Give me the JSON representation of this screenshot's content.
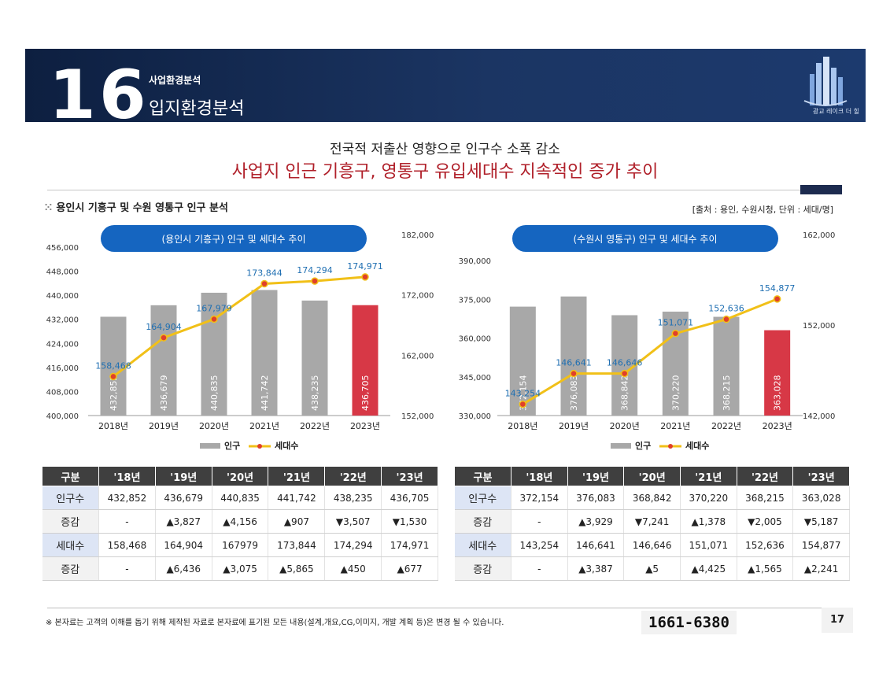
{
  "header": {
    "number": "16",
    "subtitle": "사업환경분석",
    "title": "입지환경분석",
    "logo_text": "광교 레이크 더 힐"
  },
  "headline": {
    "line1": "전국적 저출산 영향으로 인구수 소폭 감소",
    "line2": "사업지 인근 기흥구, 영통구 유입세대수 지속적인 증가 추이"
  },
  "section": {
    "title": "용인시 기흥구 및 수원 영통구 인구 분석",
    "source": "[출처 : 용인, 수원시청, 단위 : 세대/명]"
  },
  "colors": {
    "bar": "#a8a8a8",
    "bar_highlight": "#d73846",
    "line": "#f1c018",
    "dot": "#e0402a",
    "pill": "#1565c0",
    "value_label": "#1f6fb2"
  },
  "chart_data": [
    {
      "type": "bar",
      "title": "(용인시 기흥구) 인구 및 세대수 추이",
      "categories": [
        "2018년",
        "2019년",
        "2020년",
        "2021년",
        "2022년",
        "2023년"
      ],
      "series": [
        {
          "name": "인구",
          "type": "bar",
          "axis": "left",
          "values": [
            432852,
            436679,
            440835,
            441742,
            438235,
            436705
          ],
          "labels": [
            "432,852",
            "436,679",
            "440,835",
            "441,742",
            "438,235",
            "436,705"
          ]
        },
        {
          "name": "세대수",
          "type": "line",
          "axis": "right",
          "values": [
            158468,
            164904,
            167979,
            173844,
            174294,
            174971
          ],
          "labels": [
            "158,468",
            "164,904",
            "167,979",
            "173,844",
            "174,294",
            "174,971"
          ]
        }
      ],
      "ylim_left": [
        400000,
        456000
      ],
      "yticks_left": [
        "400,000",
        "408,000",
        "416,000",
        "424,000",
        "432,000",
        "440,000",
        "448,000",
        "456,000"
      ],
      "ylim_right": [
        152000,
        182000
      ],
      "yticks_right": [
        "152,000",
        "162,000",
        "172,000",
        "182,000"
      ],
      "legend": [
        "인구",
        "세대수"
      ]
    },
    {
      "type": "bar",
      "title": "(수원시 영통구) 인구 및 세대수 추이",
      "categories": [
        "2018년",
        "2019년",
        "2020년",
        "2021년",
        "2022년",
        "2023년"
      ],
      "series": [
        {
          "name": "인구",
          "type": "bar",
          "axis": "left",
          "values": [
            372154,
            376083,
            368842,
            370220,
            368215,
            363028
          ],
          "labels": [
            "372,154",
            "376,083",
            "368,842",
            "370,220",
            "368,215",
            "363,028"
          ]
        },
        {
          "name": "세대수",
          "type": "line",
          "axis": "right",
          "values": [
            143254,
            146641,
            146646,
            151071,
            152636,
            154877
          ],
          "labels": [
            "143,254",
            "146,641",
            "146,646",
            "151,071",
            "152,636",
            "154,877"
          ]
        }
      ],
      "ylim_left": [
        330000,
        390000
      ],
      "yticks_left": [
        "330,000",
        "345,000",
        "360,000",
        "375,000",
        "390,000"
      ],
      "ylim_right": [
        142000,
        162000
      ],
      "yticks_right": [
        "142,000",
        "152,000",
        "162,000"
      ],
      "legend": [
        "인구",
        "세대수"
      ]
    }
  ],
  "tables": [
    {
      "headers": [
        "구분",
        "'18년",
        "'19년",
        "'20년",
        "'21년",
        "'22년",
        "'23년"
      ],
      "rows": [
        {
          "label": "인구수",
          "cells": [
            "432,852",
            "436,679",
            "440,835",
            "441,742",
            "438,235",
            "436,705"
          ]
        },
        {
          "label": "증감",
          "cells": [
            "-",
            "▲3,827",
            "▲4,156",
            "▲907",
            "▼3,507",
            "▼1,530"
          ]
        },
        {
          "label": "세대수",
          "cells": [
            "158,468",
            "164,904",
            "167979",
            "173,844",
            "174,294",
            "174,971"
          ]
        },
        {
          "label": "증감",
          "cells": [
            "-",
            "▲6,436",
            "▲3,075",
            "▲5,865",
            "▲450",
            "▲677"
          ]
        }
      ]
    },
    {
      "headers": [
        "구분",
        "'18년",
        "'19년",
        "'20년",
        "'21년",
        "'22년",
        "'23년"
      ],
      "rows": [
        {
          "label": "인구수",
          "cells": [
            "372,154",
            "376,083",
            "368,842",
            "370,220",
            "368,215",
            "363,028"
          ]
        },
        {
          "label": "증감",
          "cells": [
            "-",
            "▲3,929",
            "▼7,241",
            "▲1,378",
            "▼2,005",
            "▼5,187"
          ]
        },
        {
          "label": "세대수",
          "cells": [
            "143,254",
            "146,641",
            "146,646",
            "151,071",
            "152,636",
            "154,877"
          ]
        },
        {
          "label": "증감",
          "cells": [
            "-",
            "▲3,387",
            "▲5",
            "▲4,425",
            "▲1,565",
            "▲2,241"
          ]
        }
      ]
    }
  ],
  "footer": {
    "note": "※ 본자료는 고객의 이해를 돕기 위해 제작된 자료로 본자료에 표기된 모든 내용(설계,개요,CG,이미지, 개발 계획 등)은 변경 될 수 있습니다.",
    "phone": "1661-6380",
    "page": "17"
  }
}
